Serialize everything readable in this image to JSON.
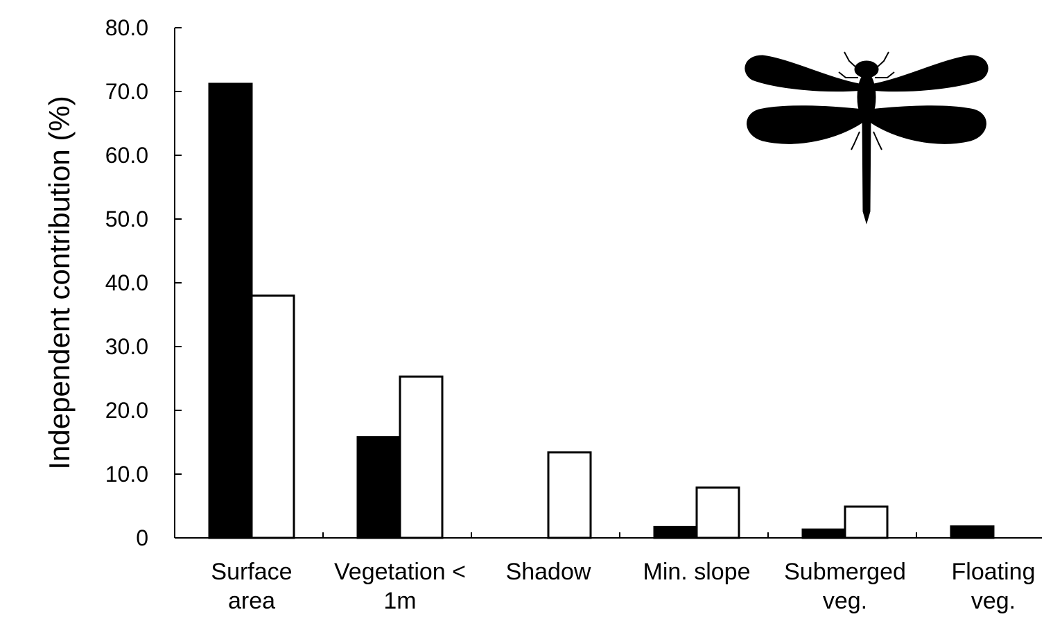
{
  "chart_data": {
    "type": "bar",
    "title": "",
    "xlabel": "",
    "ylabel": "Independent contribution (%)",
    "ylim": [
      0,
      80
    ],
    "y_ticks": [
      "0",
      "10.0",
      "20.0",
      "30.0",
      "40.0",
      "50.0",
      "60.0",
      "70.0",
      "80.0"
    ],
    "categories": [
      [
        "Surface",
        "area"
      ],
      [
        "Vegetation <",
        "1m"
      ],
      [
        "Shadow"
      ],
      [
        "Min. slope"
      ],
      [
        "Submerged",
        "veg."
      ],
      [
        "Floating",
        "veg."
      ]
    ],
    "series": [
      {
        "fill": "#000000",
        "values": [
          71.2,
          15.8,
          0,
          1.7,
          1.3,
          1.8
        ]
      },
      {
        "fill": "#ffffff",
        "values": [
          38.0,
          25.3,
          13.4,
          7.9,
          4.9,
          0
        ]
      }
    ],
    "grid": false,
    "legend": "none",
    "icon": "dragonfly-silhouette-icon"
  }
}
